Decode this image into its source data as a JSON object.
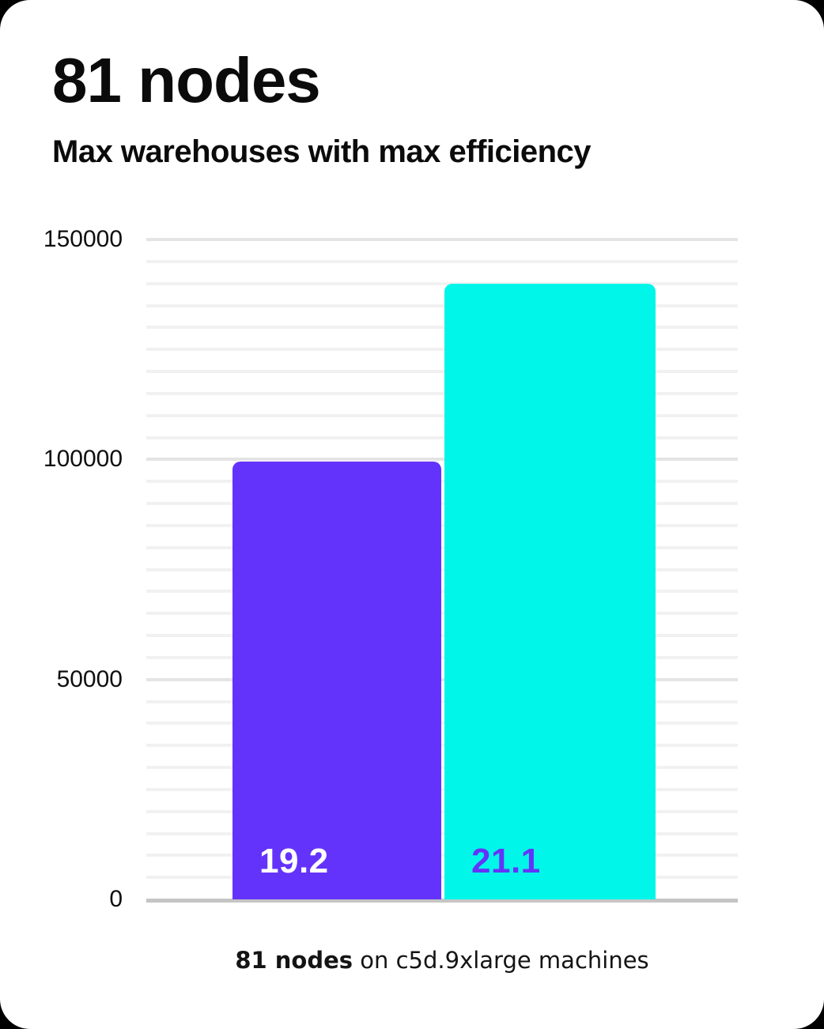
{
  "page": {
    "background": "#000000",
    "card_background": "#FFFFFF"
  },
  "header": {
    "title": "81 nodes",
    "subtitle": "Max warehouses with max efficiency"
  },
  "chart_data": {
    "type": "bar",
    "title": "81 nodes",
    "subtitle": "Max warehouses with max efficiency",
    "categories": [
      "19.2",
      "21.1"
    ],
    "values": [
      99500,
      140000
    ],
    "series": [
      {
        "name": "Max warehouses with max efficiency",
        "values": [
          99500,
          140000
        ]
      }
    ],
    "bars": [
      {
        "label": "19.2",
        "value": 99500,
        "color": "#6433FB",
        "label_color": "#FFFFFF"
      },
      {
        "label": "21.1",
        "value": 140000,
        "color": "#00F6E8",
        "label_color": "#6433FB"
      }
    ],
    "xlabel": "",
    "ylabel": "",
    "ylim": [
      0,
      150000
    ],
    "y_ticks": [
      0,
      50000,
      100000,
      150000
    ],
    "y_tick_labels": [
      "0",
      "50000",
      "100000",
      "150000"
    ],
    "minor_grid_step": 5000,
    "grid": true,
    "legend": false,
    "grid_colors": {
      "minor": "#F1F1F1",
      "major": "#E4E4E4",
      "baseline": "#C5C5C5"
    }
  },
  "caption": {
    "bold": "81 nodes",
    "regular": " on c5d.9xlarge machines"
  }
}
